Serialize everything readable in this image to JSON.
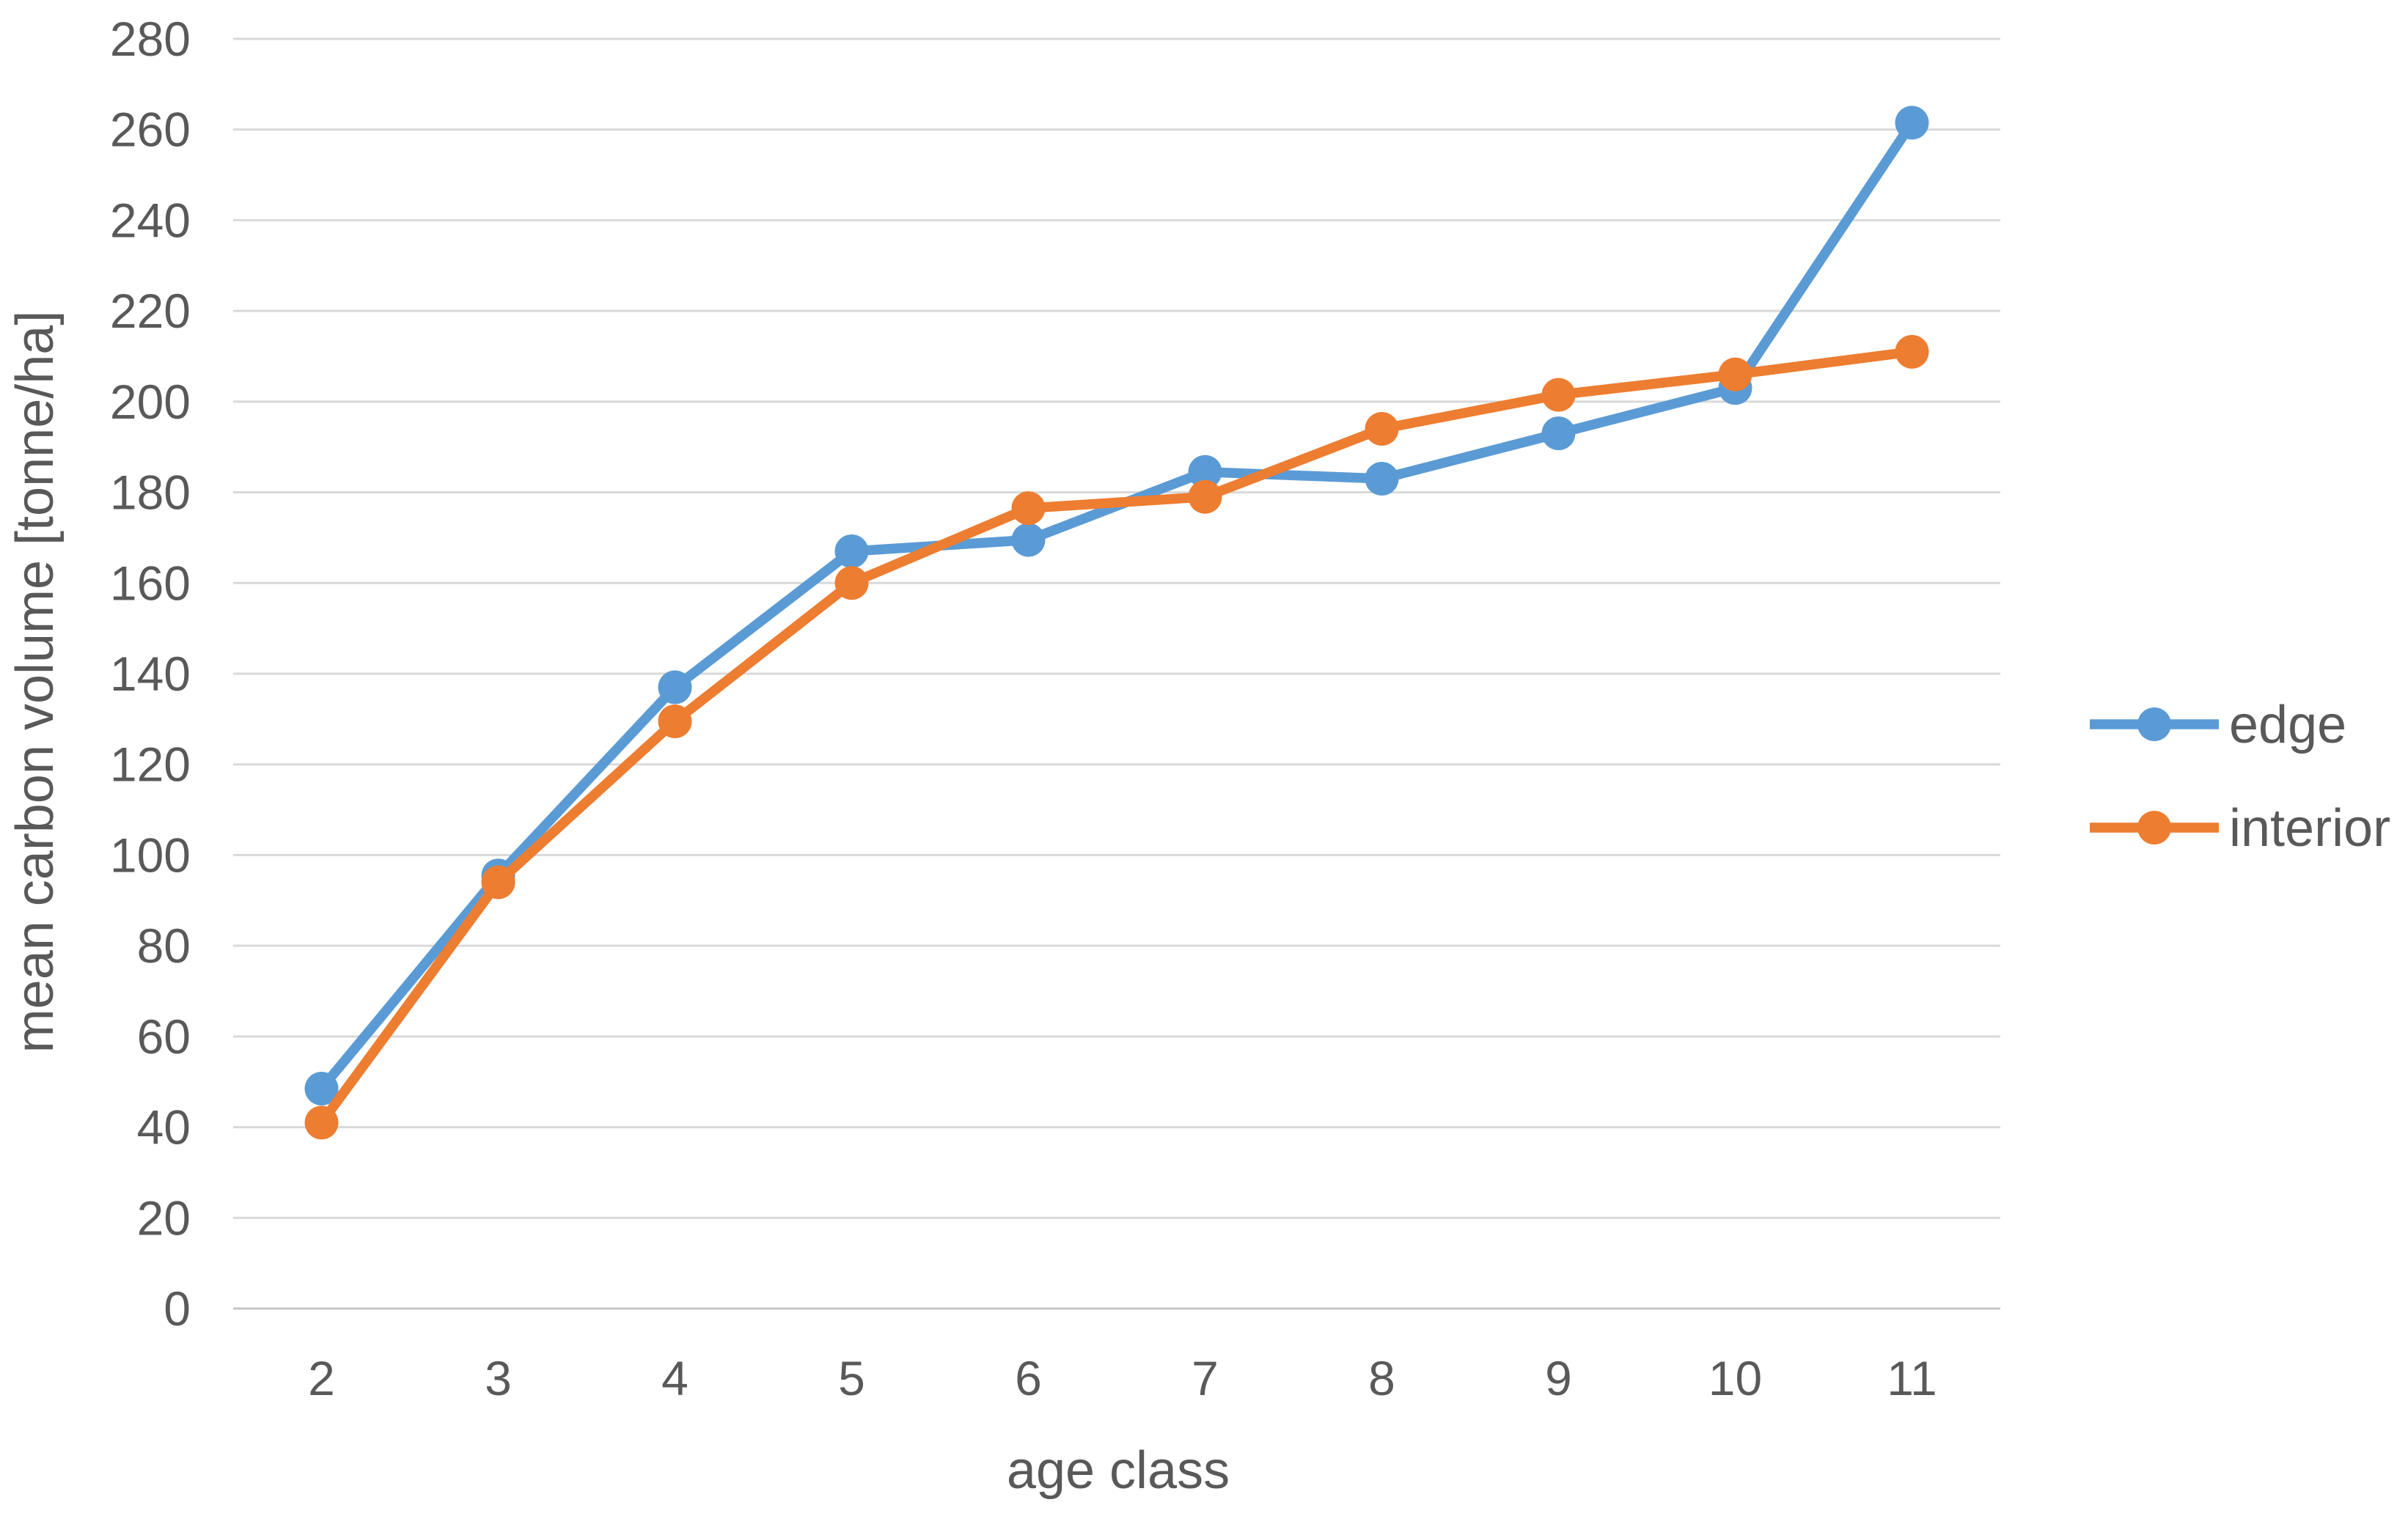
{
  "chart_data": {
    "type": "line",
    "title": "",
    "xlabel": "age class",
    "ylabel": "mean carbon volume [tonne/ha]",
    "x": [
      2,
      3,
      4,
      5,
      6,
      7,
      8,
      9,
      10,
      11
    ],
    "series": [
      {
        "name": "edge",
        "color": "#5B9BD5",
        "values": [
          48.5,
          95.5,
          137,
          167,
          169.5,
          184.5,
          183,
          193,
          203,
          261.5
        ]
      },
      {
        "name": "interior",
        "color": "#ED7D31",
        "values": [
          41,
          94,
          129.5,
          160,
          176.5,
          179,
          194,
          201.5,
          206,
          211
        ]
      }
    ],
    "ylim": [
      0,
      280
    ],
    "yticks": [
      0,
      20,
      40,
      60,
      80,
      100,
      120,
      140,
      160,
      180,
      200,
      220,
      240,
      260,
      280
    ],
    "grid": true,
    "legend_position": "right",
    "legend_labels": [
      "edge",
      "interior"
    ],
    "colors": {
      "gridline": "#D9D9D9",
      "zero_line": "#C6C6C6",
      "text": "#595959"
    }
  }
}
